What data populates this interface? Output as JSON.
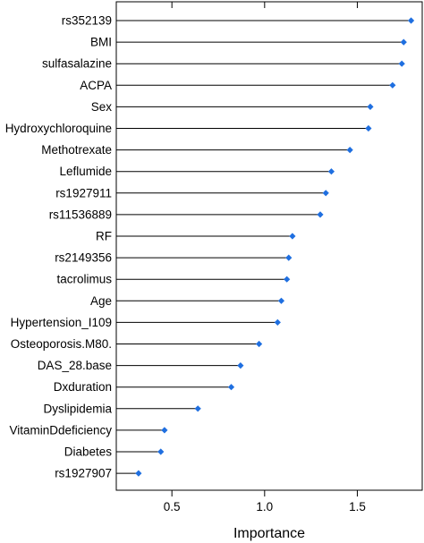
{
  "chart_data": {
    "type": "dot",
    "title": "",
    "xlabel": "Importance",
    "ylabel": "",
    "xlim": [
      0.2,
      1.85
    ],
    "xticks": [
      0.5,
      1.0,
      1.5
    ],
    "xtick_labels": [
      "0.5",
      "1.0",
      "1.5"
    ],
    "grid": false,
    "features": [
      {
        "label": "rs352139",
        "value": 1.79
      },
      {
        "label": "BMI",
        "value": 1.75
      },
      {
        "label": "sulfasalazine",
        "value": 1.74
      },
      {
        "label": "ACPA",
        "value": 1.69
      },
      {
        "label": "Sex",
        "value": 1.57
      },
      {
        "label": "Hydroxychloroquine",
        "value": 1.56
      },
      {
        "label": "Methotrexate",
        "value": 1.46
      },
      {
        "label": "Leflumide",
        "value": 1.36
      },
      {
        "label": "rs1927911",
        "value": 1.33
      },
      {
        "label": "rs11536889",
        "value": 1.3
      },
      {
        "label": "RF",
        "value": 1.15
      },
      {
        "label": "rs2149356",
        "value": 1.13
      },
      {
        "label": "tacrolimus",
        "value": 1.12
      },
      {
        "label": "Age",
        "value": 1.09
      },
      {
        "label": "Hypertension_I109",
        "value": 1.07
      },
      {
        "label": "Osteoporosis.M80.",
        "value": 0.97
      },
      {
        "label": "DAS_28.base",
        "value": 0.87
      },
      {
        "label": "Dxduration",
        "value": 0.82
      },
      {
        "label": "Dyslipidemia",
        "value": 0.64
      },
      {
        "label": "VitaminDdeficiency",
        "value": 0.46
      },
      {
        "label": "Diabetes",
        "value": 0.44
      },
      {
        "label": "rs1927907",
        "value": 0.32
      }
    ],
    "colors": {
      "point": "#1f6fe0",
      "line": "#000000",
      "frame": "#000000"
    }
  }
}
